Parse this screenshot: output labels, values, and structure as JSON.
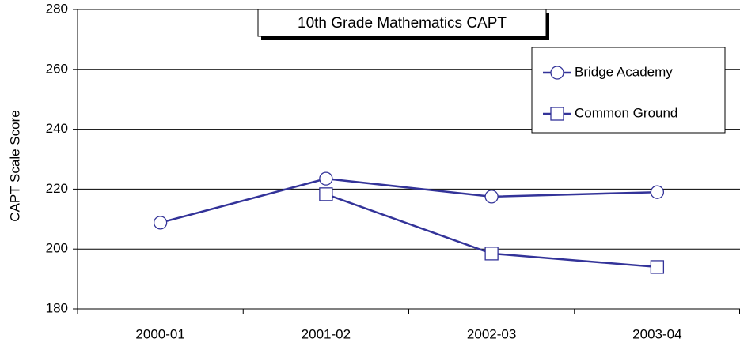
{
  "chart_data": {
    "type": "line",
    "title": "10th Grade Mathematics CAPT",
    "y_label": "CAPT Scale Score",
    "categories": [
      "2000-01",
      "2001-02",
      "2002-03",
      "2003-04"
    ],
    "series": [
      {
        "name": "Bridge Academy",
        "color": "#333399",
        "marker": "circle",
        "values": [
          208.8,
          223.5,
          217.5,
          219
        ]
      },
      {
        "name": "Common Ground",
        "color": "#333399",
        "marker": "square",
        "values": [
          null,
          218.3,
          198.5,
          194
        ]
      }
    ],
    "ylim": [
      180,
      280
    ],
    "yticks": [
      180,
      200,
      220,
      240,
      260,
      280
    ],
    "grid": true,
    "legend": "upper right"
  }
}
